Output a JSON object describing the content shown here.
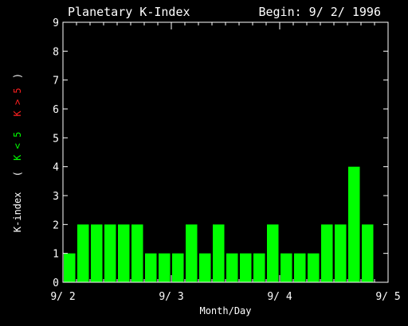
{
  "chart_data": {
    "type": "bar",
    "title": "Planetary K-Index",
    "subtitle": "Begin: 9/ 2/ 1996",
    "xlabel": "Month/Day",
    "ylabel": {
      "main": "K-index",
      "low": "K < 5",
      "high": "K > 5",
      "open_paren": "(",
      "close_paren": ")"
    },
    "ylim": [
      0,
      9
    ],
    "yticks": [
      "0",
      "1",
      "2",
      "3",
      "4",
      "5",
      "6",
      "7",
      "8",
      "9"
    ],
    "xtick_labels": [
      "9/ 2",
      "9/ 3",
      "9/ 4",
      "9/ 5"
    ],
    "values": [
      1,
      2,
      2,
      2,
      2,
      2,
      1,
      1,
      1,
      2,
      1,
      2,
      1,
      1,
      1,
      2,
      1,
      1,
      1,
      2,
      2,
      4,
      2
    ],
    "bars_per_day": 8,
    "days": 3,
    "colors": {
      "background": "#000000",
      "axis": "#ffffff",
      "bar_low": "#00ff00",
      "bar_high": "#ff0000",
      "label_low": "#00ff00",
      "label_high": "#ff2020"
    },
    "grid": false
  }
}
